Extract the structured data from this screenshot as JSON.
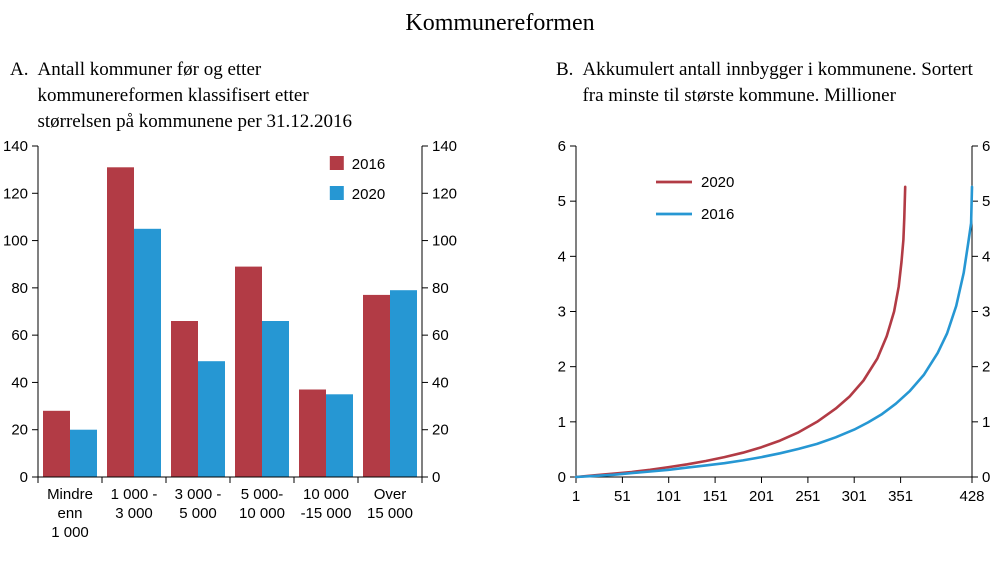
{
  "figure": {
    "title": "Kommunereformen"
  },
  "panel_a": {
    "label": "A.",
    "title": "Antall kommuner før og etter kommunereformen klassifisert etter størrelsen på kommunene per 31.12.2016"
  },
  "panel_b": {
    "label": "B.",
    "title": "Akkumulert antall innbygger i kommunene. Sortert fra minste til største kommune. Millioner"
  },
  "colors": {
    "red": "#b23b45",
    "blue": "#2697d3",
    "axis": "#000000"
  },
  "chart_data": [
    {
      "type": "bar",
      "title": "Antall kommuner før og etter kommunereformen klassifisert etter størrelsen på kommunene per 31.12.2016",
      "categories": [
        "Mindre\nenn\n1 000",
        "1 000 -\n3 000",
        "3 000 -\n5 000",
        "5 000-\n10 000",
        "10 000\n-15 000",
        "Over\n15 000"
      ],
      "series": [
        {
          "name": "2016",
          "color_key": "red",
          "values": [
            28,
            131,
            66,
            89,
            37,
            77
          ]
        },
        {
          "name": "2020",
          "color_key": "blue",
          "values": [
            20,
            105,
            49,
            66,
            35,
            79
          ]
        }
      ],
      "ylabel": "",
      "ylim": [
        0,
        140
      ],
      "ytick_step": 20,
      "legend_position": "top-right",
      "grid": false
    },
    {
      "type": "line",
      "title": "Akkumulert antall innbygger i kommunene. Sortert fra minste til største kommune. Millioner",
      "xlim": [
        1,
        428
      ],
      "xticks": [
        1,
        51,
        101,
        151,
        201,
        251,
        301,
        351,
        428
      ],
      "ylim": [
        0,
        6
      ],
      "ytick_step": 1,
      "legend_position": "top-left",
      "grid": false,
      "series": [
        {
          "name": "2020",
          "color_key": "red",
          "x": [
            1,
            21,
            41,
            61,
            81,
            101,
            121,
            141,
            161,
            181,
            201,
            221,
            241,
            261,
            281,
            296,
            311,
            326,
            336,
            344,
            349,
            352,
            354,
            355,
            356
          ],
          "y": [
            0.0,
            0.03,
            0.06,
            0.09,
            0.13,
            0.18,
            0.23,
            0.29,
            0.36,
            0.44,
            0.54,
            0.66,
            0.81,
            1.0,
            1.24,
            1.46,
            1.75,
            2.15,
            2.55,
            3.0,
            3.45,
            3.9,
            4.3,
            4.7,
            5.26
          ]
        },
        {
          "name": "2016",
          "color_key": "blue",
          "x": [
            1,
            21,
            41,
            61,
            81,
            101,
            121,
            141,
            161,
            181,
            201,
            221,
            241,
            261,
            281,
            301,
            316,
            331,
            346,
            361,
            376,
            391,
            401,
            411,
            419,
            424,
            427,
            428
          ],
          "y": [
            0.0,
            0.02,
            0.04,
            0.07,
            0.1,
            0.13,
            0.17,
            0.21,
            0.25,
            0.3,
            0.36,
            0.43,
            0.51,
            0.6,
            0.72,
            0.86,
            0.99,
            1.14,
            1.33,
            1.56,
            1.85,
            2.25,
            2.6,
            3.1,
            3.7,
            4.25,
            4.6,
            5.26
          ]
        }
      ]
    }
  ]
}
